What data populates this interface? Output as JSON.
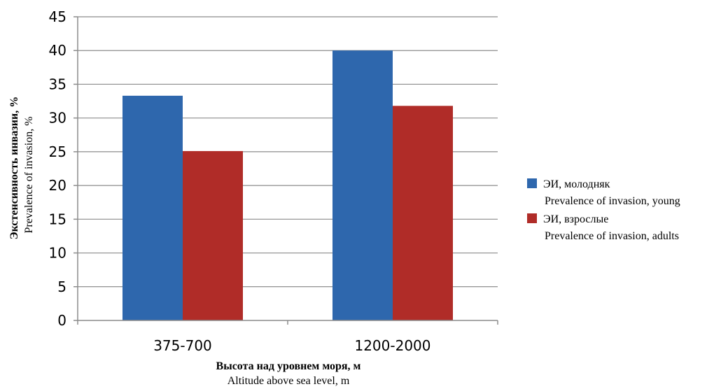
{
  "chart_data": {
    "type": "bar",
    "categories": [
      "375-700",
      "1200-2000"
    ],
    "series": [
      {
        "name": "ЭИ, молодняк",
        "name_en": "Prevalence of invasion, young",
        "color": "#2e67ad",
        "values": [
          33.3,
          40
        ]
      },
      {
        "name": "ЭИ, взрослые",
        "name_en": "Prevalence of invasion, adults",
        "color": "#b02c28",
        "values": [
          25.1,
          31.8
        ]
      }
    ],
    "ylim": [
      0,
      45
    ],
    "yticks": [
      0,
      5,
      10,
      15,
      20,
      25,
      30,
      35,
      40,
      45
    ],
    "ylabel": "Экстенсивность инвазии, %",
    "ylabel_en": "Prevalence of invasion, %",
    "xlabel": "Высота над уровнем моря, м",
    "xlabel_en": "Altitude above sea level, m",
    "grid": true,
    "legend_position": "right"
  }
}
